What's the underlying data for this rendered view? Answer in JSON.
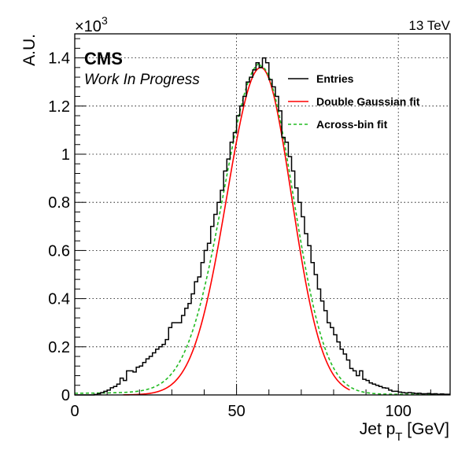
{
  "chart_data": {
    "type": "line",
    "xlabel_main": "Jet p",
    "xlabel_sub": "T",
    "xlabel_unit": " [GeV]",
    "ylabel": "A.U.",
    "y_multiplier_base": "×10",
    "y_multiplier_exp": "3",
    "energy_label": "13 TeV",
    "cms_label": "CMS",
    "status_label": "Work In Progress",
    "xlim": [
      0,
      116
    ],
    "ylim": [
      0,
      1.5
    ],
    "x_ticks": [
      0,
      50,
      100
    ],
    "y_ticks": [
      0,
      0.2,
      0.4,
      0.6,
      0.8,
      1,
      1.2,
      1.4
    ],
    "y_tick_labels": [
      "0",
      "0.2",
      "0.4",
      "0.6",
      "0.8",
      "1",
      "1.2",
      "1.4"
    ],
    "grid": true,
    "legend_position": "top-right",
    "legend": [
      {
        "label": "Entries",
        "color": "#000000",
        "style": "solid"
      },
      {
        "label": "Double Gaussian fit",
        "color": "#ff0000",
        "style": "solid"
      },
      {
        "label": "Across-bin fit",
        "color": "#22bb22",
        "style": "dashed"
      }
    ],
    "histogram": {
      "name": "Entries",
      "bin_width": 1,
      "bin_start": 0,
      "values": [
        0.0,
        0.0,
        0.0,
        0.0,
        0.0,
        0.0,
        0.002,
        0.005,
        0.01,
        0.015,
        0.02,
        0.03,
        0.035,
        0.045,
        0.07,
        0.06,
        0.1,
        0.1,
        0.095,
        0.115,
        0.12,
        0.135,
        0.15,
        0.16,
        0.175,
        0.19,
        0.2,
        0.21,
        0.23,
        0.28,
        0.3,
        0.3,
        0.3,
        0.33,
        0.36,
        0.38,
        0.42,
        0.47,
        0.49,
        0.55,
        0.6,
        0.63,
        0.7,
        0.75,
        0.8,
        0.85,
        0.93,
        0.98,
        1.05,
        1.09,
        1.16,
        1.2,
        1.24,
        1.3,
        1.32,
        1.35,
        1.38,
        1.36,
        1.4,
        1.38,
        1.31,
        1.28,
        1.24,
        1.18,
        1.07,
        1.05,
        0.99,
        0.93,
        0.86,
        0.8,
        0.74,
        0.67,
        0.62,
        0.55,
        0.5,
        0.44,
        0.39,
        0.35,
        0.3,
        0.28,
        0.25,
        0.22,
        0.19,
        0.17,
        0.145,
        0.11,
        0.1,
        0.08,
        0.1,
        0.065,
        0.06,
        0.05,
        0.045,
        0.04,
        0.035,
        0.03,
        0.028,
        0.02,
        0.015,
        0.015,
        0.012,
        0.01,
        0.008,
        0.01,
        0.008,
        0.006,
        0.007,
        0.005,
        0.005,
        0.006,
        0.004,
        0.005,
        0.003,
        0.004,
        0.003,
        0.003
      ]
    },
    "double_gaussian_fit": {
      "name": "Double Gaussian fit",
      "x_range": [
        15,
        85
      ],
      "peak_x": 57.5,
      "peak_y": 1.36,
      "sigma_low": 10.5,
      "sigma_high": 9.5
    },
    "across_bin_fit": {
      "name": "Across-bin fit",
      "x_range": [
        0,
        116
      ],
      "peak_x": 57.5,
      "peak_y": 1.36,
      "sigma_low": 11.5,
      "sigma_high": 10.0,
      "tail_low_amplitude": 0.012,
      "tail_high_amplitude": 0.005
    }
  }
}
